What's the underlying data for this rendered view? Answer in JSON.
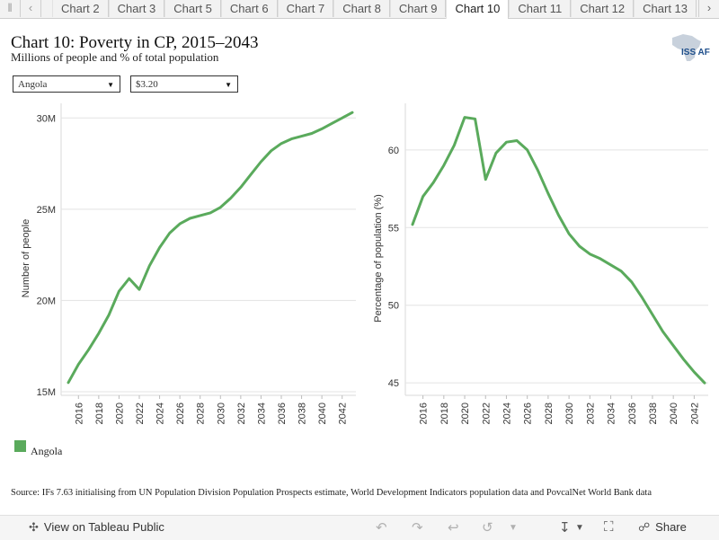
{
  "tabbar": {
    "tabs": [
      "Chart 2",
      "Chart 3",
      "Chart 5",
      "Chart 6",
      "Chart 7",
      "Chart 8",
      "Chart 9",
      "Chart 10",
      "Chart 11",
      "Chart 12",
      "Chart 13"
    ],
    "active_tab": "Chart 10"
  },
  "header": {
    "title": "Chart 10: Poverty in CP, 2015–2043",
    "subtitle": "Millions of people and % of total population",
    "logo_text": "ISS AF"
  },
  "filters": {
    "country": "Angola",
    "poverty_line": "$3.20"
  },
  "legend": {
    "label": "Angola",
    "color": "#5aaa5c"
  },
  "source": "Source: IFs 7.63 initialising from UN Population Division Population Prospects estimate, World Development Indicators population data and PovcalNet World Bank data",
  "footer": {
    "view_public": "View on Tableau Public",
    "share": "Share"
  },
  "icons": {
    "prev": "chevron-left-icon",
    "next": "chevron-right-icon",
    "undo": "undo-icon",
    "redo": "redo-icon",
    "revert": "revert-icon",
    "refresh": "refresh-icon",
    "download": "download-icon",
    "fullscreen": "fullscreen-icon",
    "share": "share-icon"
  },
  "chart_data": [
    {
      "type": "line",
      "ylabel": "Number of people",
      "ylim": [
        14.8,
        30.8
      ],
      "yticks": [
        15,
        20,
        25,
        30
      ],
      "ytick_labels": [
        "15M",
        "20M",
        "25M",
        "30M"
      ],
      "xlim": [
        2015,
        2043
      ],
      "xticks": [
        2016,
        2018,
        2020,
        2022,
        2024,
        2026,
        2028,
        2030,
        2032,
        2034,
        2036,
        2038,
        2040,
        2042
      ],
      "grid": true,
      "series": [
        {
          "name": "Angola",
          "color": "#5aaa5c",
          "x": [
            2015,
            2016,
            2017,
            2018,
            2019,
            2020,
            2021,
            2022,
            2023,
            2024,
            2025,
            2026,
            2027,
            2028,
            2029,
            2030,
            2031,
            2032,
            2033,
            2034,
            2035,
            2036,
            2037,
            2038,
            2039,
            2040,
            2041,
            2042,
            2043
          ],
          "values": [
            15.5,
            16.5,
            17.3,
            18.2,
            19.2,
            20.5,
            21.2,
            20.6,
            21.9,
            22.9,
            23.7,
            24.2,
            24.5,
            24.65,
            24.8,
            25.1,
            25.6,
            26.2,
            26.9,
            27.6,
            28.2,
            28.6,
            28.85,
            29.0,
            29.15,
            29.4,
            29.7,
            30.0,
            30.3
          ]
        }
      ]
    },
    {
      "type": "line",
      "ylabel": "Percentage of population (%)",
      "ylim": [
        44.2,
        63.0
      ],
      "yticks": [
        45,
        50,
        55,
        60
      ],
      "ytick_labels": [
        "45",
        "50",
        "55",
        "60"
      ],
      "xlim": [
        2015,
        2043
      ],
      "xticks": [
        2016,
        2018,
        2020,
        2022,
        2024,
        2026,
        2028,
        2030,
        2032,
        2034,
        2036,
        2038,
        2040,
        2042
      ],
      "grid": true,
      "series": [
        {
          "name": "Angola",
          "color": "#5aaa5c",
          "x": [
            2015,
            2016,
            2017,
            2018,
            2019,
            2020,
            2021,
            2022,
            2023,
            2024,
            2025,
            2026,
            2027,
            2028,
            2029,
            2030,
            2031,
            2032,
            2033,
            2034,
            2035,
            2036,
            2037,
            2038,
            2039,
            2040,
            2041,
            2042,
            2043
          ],
          "values": [
            55.2,
            57.0,
            57.9,
            59.0,
            60.3,
            62.1,
            62.0,
            58.1,
            59.8,
            60.5,
            60.6,
            60.0,
            58.7,
            57.2,
            55.8,
            54.6,
            53.8,
            53.3,
            53.0,
            52.6,
            52.2,
            51.5,
            50.5,
            49.4,
            48.3,
            47.4,
            46.5,
            45.7,
            45.0
          ]
        }
      ]
    }
  ]
}
